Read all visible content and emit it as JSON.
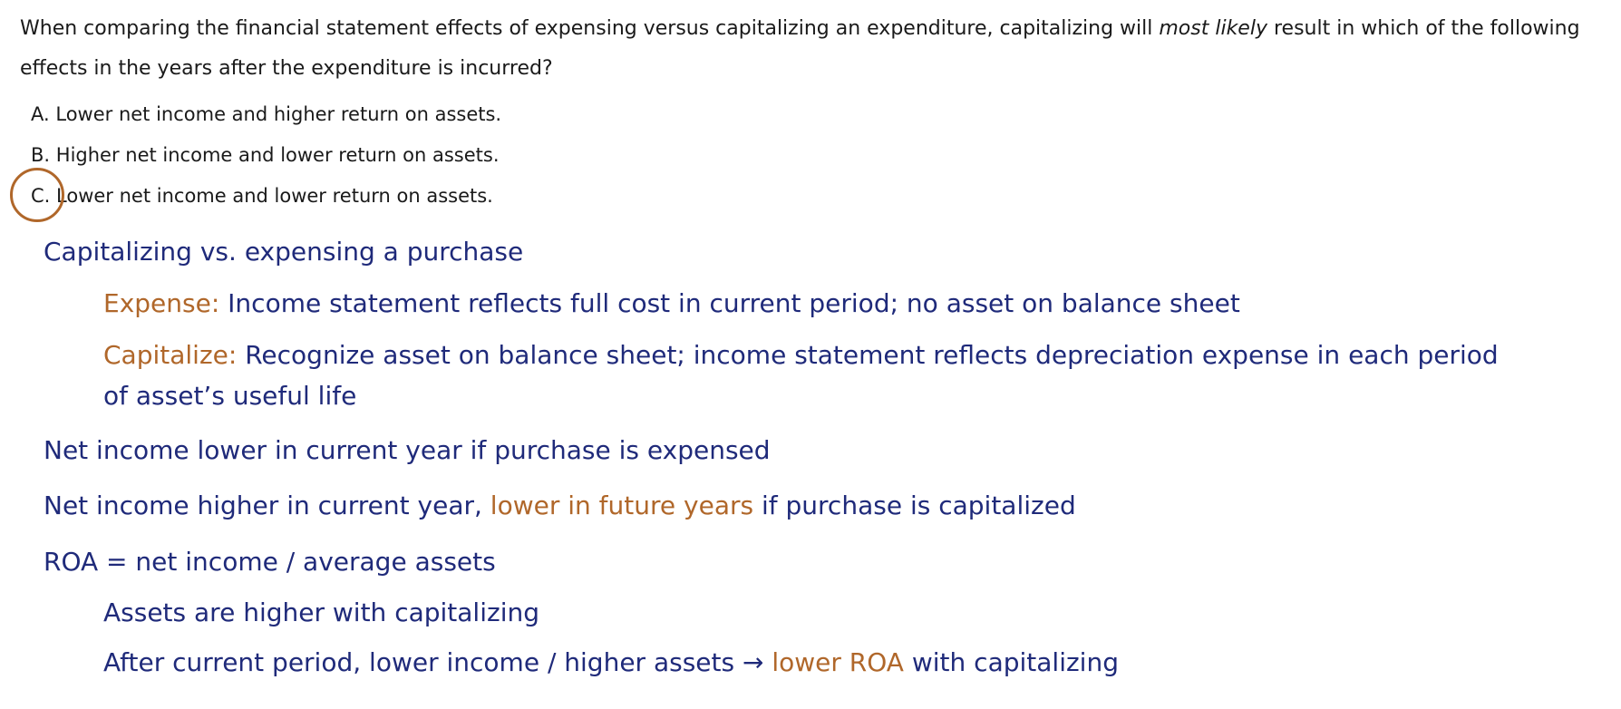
{
  "question": {
    "text_before": "When comparing the financial statement effects of expensing versus capitalizing an expenditure, capitalizing will ",
    "emphasis": "most likely",
    "text_after": " result in which of the following effects in the years after the expenditure is incurred?"
  },
  "options": [
    {
      "letter": "A.",
      "text": "Lower net income and higher return on assets."
    },
    {
      "letter": "B.",
      "text": "Higher net income and lower return on assets."
    },
    {
      "letter": "C.",
      "text": "Lower net income and lower return on assets."
    }
  ],
  "selected_option": "C",
  "notes": {
    "heading": "Capitalizing vs. expensing a purchase",
    "expense_label": "Expense:",
    "expense_text": " Income statement reflects full cost in current period; no asset on balance sheet",
    "capitalize_label": "Capitalize:",
    "capitalize_text_line1": " Recognize asset on balance sheet; income statement reflects depreciation expense in each period",
    "capitalize_text_line2": "of asset’s useful life",
    "net_income_lower": "Net income lower in current year if purchase is expensed",
    "net_income_higher_a": "Net income higher in current year, ",
    "net_income_higher_b": "lower in future years",
    "net_income_higher_c": " if purchase is capitalized",
    "roa_formula": "ROA = net income / average assets",
    "assets_higher": "Assets are higher with capitalizing",
    "after_period_a": "After current period, lower income / higher assets → ",
    "after_period_b": "lower ROA",
    "after_period_c": " with capitalizing"
  },
  "colors": {
    "navy": "#1f2a7a",
    "orange": "#b0672a",
    "text": "#1a1a1a"
  }
}
